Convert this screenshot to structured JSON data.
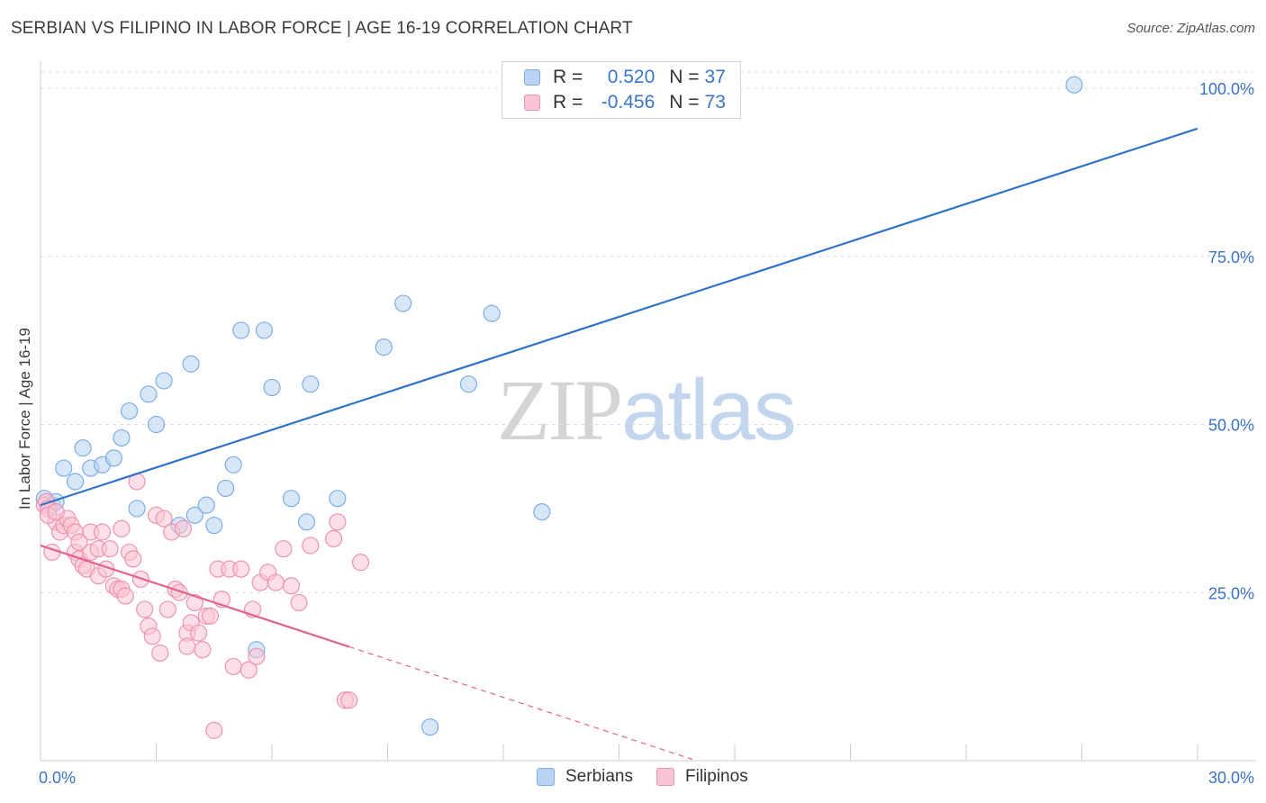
{
  "title": "SERBIAN VS FILIPINO IN LABOR FORCE | AGE 16-19 CORRELATION CHART",
  "source": "Source: ZipAtlas.com",
  "watermark": {
    "zip": "ZIP",
    "atlas": "atlas"
  },
  "colors": {
    "serbian_fill": "#b8d3f3",
    "serbian_stroke": "#7eaee6",
    "serbian_line": "#3072c8",
    "filipino_fill": "#f9c4d4",
    "filipino_stroke": "#ee93b0",
    "filipino_line": "#e0648f",
    "accent_text": "#3a74c9",
    "grid": "#dddddd"
  },
  "legend": {
    "serbian": {
      "r_label": "R =",
      "r_value": "0.520",
      "n_label": "N =",
      "n_value": "37"
    },
    "filipino": {
      "r_label": "R =",
      "r_value": "-0.456",
      "n_label": "N =",
      "n_value": "73"
    }
  },
  "bottom_legend": {
    "serbians": "Serbians",
    "filipinos": "Filipinos"
  },
  "chart_data": {
    "type": "scatter",
    "title": "SERBIAN VS FILIPINO IN LABOR FORCE | AGE 16-19 CORRELATION CHART",
    "xlabel": "",
    "ylabel": "In Labor Force | Age 16-19",
    "xlim": [
      0,
      30
    ],
    "ylim": [
      0,
      100
    ],
    "x_tick_labels": [
      "0.0%",
      "30.0%"
    ],
    "y_ticks": [
      25,
      50,
      75,
      100
    ],
    "y_tick_labels": [
      "25.0%",
      "50.0%",
      "75.0%",
      "100.0%"
    ],
    "grid": true,
    "series": [
      {
        "name": "Serbians",
        "r": 0.52,
        "n": 37,
        "trend": {
          "x": [
            0,
            30
          ],
          "y": [
            38.0,
            94.0
          ],
          "dashed_from": null
        },
        "points": [
          [
            0.1,
            39
          ],
          [
            0.3,
            38
          ],
          [
            0.4,
            38.5
          ],
          [
            0.6,
            43.5
          ],
          [
            0.9,
            41.5
          ],
          [
            1.1,
            46.5
          ],
          [
            1.3,
            43.5
          ],
          [
            1.6,
            44
          ],
          [
            1.9,
            45
          ],
          [
            2.1,
            48
          ],
          [
            2.3,
            52
          ],
          [
            2.5,
            37.5
          ],
          [
            2.8,
            54.5
          ],
          [
            3.0,
            50
          ],
          [
            3.2,
            56.5
          ],
          [
            3.6,
            35
          ],
          [
            3.9,
            59
          ],
          [
            4.0,
            36.5
          ],
          [
            4.3,
            38
          ],
          [
            4.5,
            35
          ],
          [
            4.8,
            40.5
          ],
          [
            5.0,
            44
          ],
          [
            5.2,
            64
          ],
          [
            5.6,
            16.5
          ],
          [
            5.8,
            64
          ],
          [
            6.0,
            55.5
          ],
          [
            6.5,
            39
          ],
          [
            6.9,
            35.5
          ],
          [
            7.0,
            56
          ],
          [
            7.7,
            39
          ],
          [
            8.9,
            61.5
          ],
          [
            9.4,
            68
          ],
          [
            10.1,
            5
          ],
          [
            11.1,
            56
          ],
          [
            11.7,
            66.5
          ],
          [
            13.0,
            37
          ],
          [
            26.8,
            100.5
          ]
        ]
      },
      {
        "name": "Filipinos",
        "r": -0.456,
        "n": 73,
        "trend": {
          "x": [
            0,
            16.9
          ],
          "y": [
            32.0,
            0.2
          ],
          "dashed_from": 8.0
        },
        "points": [
          [
            0.1,
            38
          ],
          [
            0.15,
            38.5
          ],
          [
            0.2,
            37.5
          ],
          [
            0.3,
            31
          ],
          [
            0.4,
            35.5
          ],
          [
            0.5,
            34
          ],
          [
            0.6,
            35
          ],
          [
            0.7,
            36
          ],
          [
            0.8,
            35
          ],
          [
            0.9,
            34
          ],
          [
            0.9,
            31
          ],
          [
            1.0,
            30
          ],
          [
            1.1,
            29
          ],
          [
            1.2,
            28.5
          ],
          [
            1.3,
            31
          ],
          [
            1.3,
            34
          ],
          [
            1.5,
            31.5
          ],
          [
            1.5,
            27.5
          ],
          [
            1.6,
            34
          ],
          [
            1.7,
            28.5
          ],
          [
            1.8,
            31.5
          ],
          [
            1.9,
            26
          ],
          [
            2.0,
            25.5
          ],
          [
            2.1,
            34.5
          ],
          [
            2.1,
            25.5
          ],
          [
            2.2,
            24.5
          ],
          [
            2.3,
            31
          ],
          [
            2.4,
            30
          ],
          [
            2.5,
            41.5
          ],
          [
            2.6,
            27
          ],
          [
            2.7,
            22.5
          ],
          [
            2.8,
            20
          ],
          [
            2.9,
            18.5
          ],
          [
            3.0,
            36.5
          ],
          [
            3.1,
            16
          ],
          [
            3.2,
            36
          ],
          [
            3.3,
            22.5
          ],
          [
            3.4,
            34
          ],
          [
            3.5,
            25.5
          ],
          [
            3.6,
            25
          ],
          [
            3.7,
            34.5
          ],
          [
            3.8,
            19
          ],
          [
            3.8,
            17
          ],
          [
            3.9,
            20.5
          ],
          [
            4.0,
            23.5
          ],
          [
            4.1,
            19
          ],
          [
            4.2,
            16.5
          ],
          [
            4.3,
            21.5
          ],
          [
            4.4,
            21.5
          ],
          [
            4.5,
            4.5
          ],
          [
            4.6,
            28.5
          ],
          [
            4.7,
            24
          ],
          [
            4.9,
            28.5
          ],
          [
            5.0,
            14
          ],
          [
            5.2,
            28.5
          ],
          [
            5.4,
            13.5
          ],
          [
            5.5,
            22.5
          ],
          [
            5.6,
            15.5
          ],
          [
            5.7,
            26.5
          ],
          [
            5.9,
            28
          ],
          [
            6.1,
            26.5
          ],
          [
            6.3,
            31.5
          ],
          [
            6.5,
            26
          ],
          [
            6.7,
            23.5
          ],
          [
            7.0,
            32
          ],
          [
            7.6,
            33
          ],
          [
            7.7,
            35.5
          ],
          [
            7.9,
            9
          ],
          [
            8.0,
            9
          ],
          [
            8.3,
            29.5
          ],
          [
            0.2,
            36.5
          ],
          [
            0.4,
            37
          ],
          [
            1.0,
            32.5
          ]
        ]
      }
    ]
  }
}
